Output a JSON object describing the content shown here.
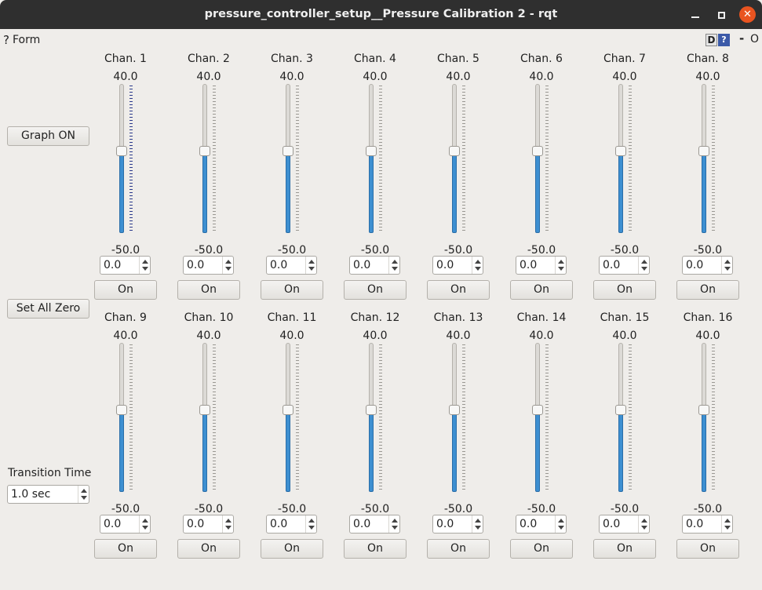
{
  "window": {
    "title": "pressure_controller_setup__Pressure Calibration 2 - rqt",
    "close_glyph": "✕"
  },
  "plugin_header": {
    "help_glyph": "?",
    "label": "Form",
    "d_label": "D",
    "help_button": "?",
    "dash": "-",
    "o": "O"
  },
  "controls": {
    "graph_button": "Graph ON",
    "zero_button": "Set All Zero",
    "transition_label": "Transition Time",
    "transition_value": "1.0 sec"
  },
  "slider_range": {
    "max": "40.0",
    "min": "-50.0"
  },
  "colors": {
    "accent": "#3d8fd1",
    "close": "#e95420",
    "titlebar": "#2f2f2f"
  },
  "channels": [
    {
      "name": "Chan. 1",
      "value": "0.0",
      "button": "On",
      "level": 0.556
    },
    {
      "name": "Chan. 2",
      "value": "0.0",
      "button": "On",
      "level": 0.556
    },
    {
      "name": "Chan. 3",
      "value": "0.0",
      "button": "On",
      "level": 0.556
    },
    {
      "name": "Chan. 4",
      "value": "0.0",
      "button": "On",
      "level": 0.556
    },
    {
      "name": "Chan. 5",
      "value": "0.0",
      "button": "On",
      "level": 0.556
    },
    {
      "name": "Chan. 6",
      "value": "0.0",
      "button": "On",
      "level": 0.556
    },
    {
      "name": "Chan. 7",
      "value": "0.0",
      "button": "On",
      "level": 0.556
    },
    {
      "name": "Chan. 8",
      "value": "0.0",
      "button": "On",
      "level": 0.556
    },
    {
      "name": "Chan. 9",
      "value": "0.0",
      "button": "On",
      "level": 0.556
    },
    {
      "name": "Chan. 10",
      "value": "0.0",
      "button": "On",
      "level": 0.556
    },
    {
      "name": "Chan. 11",
      "value": "0.0",
      "button": "On",
      "level": 0.556
    },
    {
      "name": "Chan. 12",
      "value": "0.0",
      "button": "On",
      "level": 0.556
    },
    {
      "name": "Chan. 13",
      "value": "0.0",
      "button": "On",
      "level": 0.556
    },
    {
      "name": "Chan. 14",
      "value": "0.0",
      "button": "On",
      "level": 0.556
    },
    {
      "name": "Chan. 15",
      "value": "0.0",
      "button": "On",
      "level": 0.556
    },
    {
      "name": "Chan. 16",
      "value": "0.0",
      "button": "On",
      "level": 0.556
    }
  ]
}
